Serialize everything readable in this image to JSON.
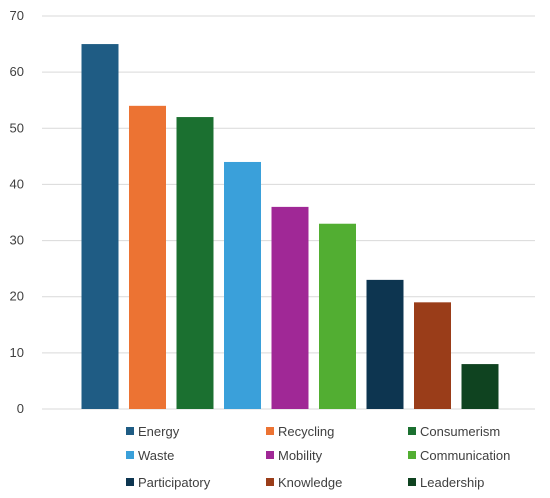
{
  "chart_data": {
    "type": "bar",
    "categories": [
      "Energy",
      "Recycling",
      "Consumerism",
      "Waste",
      "Mobility",
      "Communication",
      "Participatory",
      "Knowledge",
      "Leadership"
    ],
    "values": [
      65,
      54,
      52,
      44,
      36,
      33,
      23,
      19,
      8
    ],
    "colors": [
      "#1f5c84",
      "#ec7333",
      "#1b7030",
      "#3aa0da",
      "#a02896",
      "#52ae32",
      "#0d3550",
      "#9a3d19",
      "#0f4320"
    ],
    "ylim": [
      0,
      70
    ],
    "yticks": [
      0,
      10,
      20,
      30,
      40,
      50,
      60,
      70
    ],
    "grid": true,
    "legend": "bottom",
    "title": "",
    "xlabel": "",
    "ylabel": ""
  }
}
